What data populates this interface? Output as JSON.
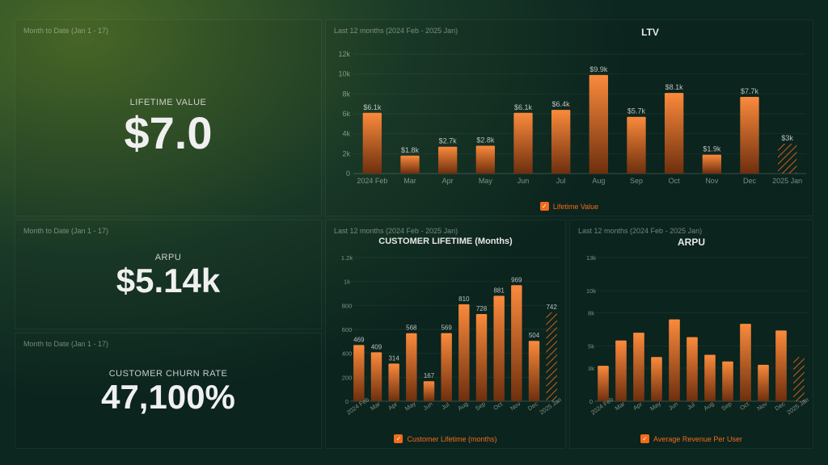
{
  "period_mtd": "Month to Date (Jan 1 - 17)",
  "period_12m": "Last 12 months (2024 Feb - 2025 Jan)",
  "colors": {
    "accent": "#f26a1b",
    "bar_top": "#f97316",
    "bar_bottom": "#7a2e0b",
    "text": "#e8e8e8",
    "muted": "rgba(200,210,200,0.55)"
  },
  "kpi": {
    "ltv": {
      "label": "LIFETIME VALUE",
      "value": "$7.0"
    },
    "arpu": {
      "label": "ARPU",
      "value": "$5.14k"
    },
    "churn": {
      "label": "CUSTOMER CHURN RATE",
      "value": "47,100%"
    }
  },
  "charts": {
    "ltv": {
      "title": "LTV",
      "legend": "Lifetime Value",
      "ylabels": [
        "0",
        "2k",
        "4k",
        "6k",
        "8k",
        "10k",
        "12k"
      ],
      "ymax": 12,
      "categories": [
        "2024 Feb",
        "Mar",
        "Apr",
        "May",
        "Jun",
        "Jul",
        "Aug",
        "Sep",
        "Oct",
        "Nov",
        "Dec",
        "2025 Jan"
      ],
      "values": [
        6.1,
        1.8,
        2.7,
        2.8,
        6.1,
        6.4,
        9.9,
        5.7,
        8.1,
        1.9,
        7.7,
        3.0
      ],
      "value_labels": [
        "$6.1k",
        "$1.8k",
        "$2.7k",
        "$2.8k",
        "$6.1k",
        "$6.4k",
        "$9.9k",
        "$5.7k",
        "$8.1k",
        "$1.9k",
        "$7.7k",
        "$3k"
      ],
      "hatched_last": true
    },
    "clt": {
      "title": "CUSTOMER LIFETIME (Months)",
      "legend": "Customer Lifetime (months)",
      "ylabels": [
        "0",
        "200",
        "400",
        "600",
        "800",
        "1k",
        "1.2k"
      ],
      "ymax": 1200,
      "categories": [
        "2024 Feb",
        "Mar",
        "Apr",
        "May",
        "Jun",
        "Jul",
        "Aug",
        "Sep",
        "Oct",
        "Nov",
        "Dec",
        "2025 Jan"
      ],
      "values": [
        469,
        409,
        314,
        568,
        167,
        569,
        810,
        728,
        881,
        969,
        504,
        742
      ],
      "value_labels": [
        "469",
        "409",
        "314",
        "568",
        "167",
        "569",
        "810",
        "728",
        "881",
        "969",
        "504",
        "742"
      ],
      "hatched_last": true
    },
    "arpu": {
      "title": "ARPU",
      "legend": "Average Revenue Per User",
      "ylabels": [
        "0",
        "3k",
        "5k",
        "8k",
        "10k",
        "13k"
      ],
      "yticks": [
        0,
        3,
        5,
        8,
        10,
        13
      ],
      "ymax": 13,
      "categories": [
        "2024 Feb",
        "Mar",
        "Apr",
        "May",
        "Jun",
        "Jul",
        "Aug",
        "Sep",
        "Oct",
        "Nov",
        "Dec",
        "2025 Jan"
      ],
      "values": [
        3.2,
        5.5,
        6.2,
        4.0,
        7.4,
        5.8,
        4.2,
        3.6,
        7.0,
        3.3,
        6.4,
        4.0
      ],
      "hatched_last": true
    }
  }
}
